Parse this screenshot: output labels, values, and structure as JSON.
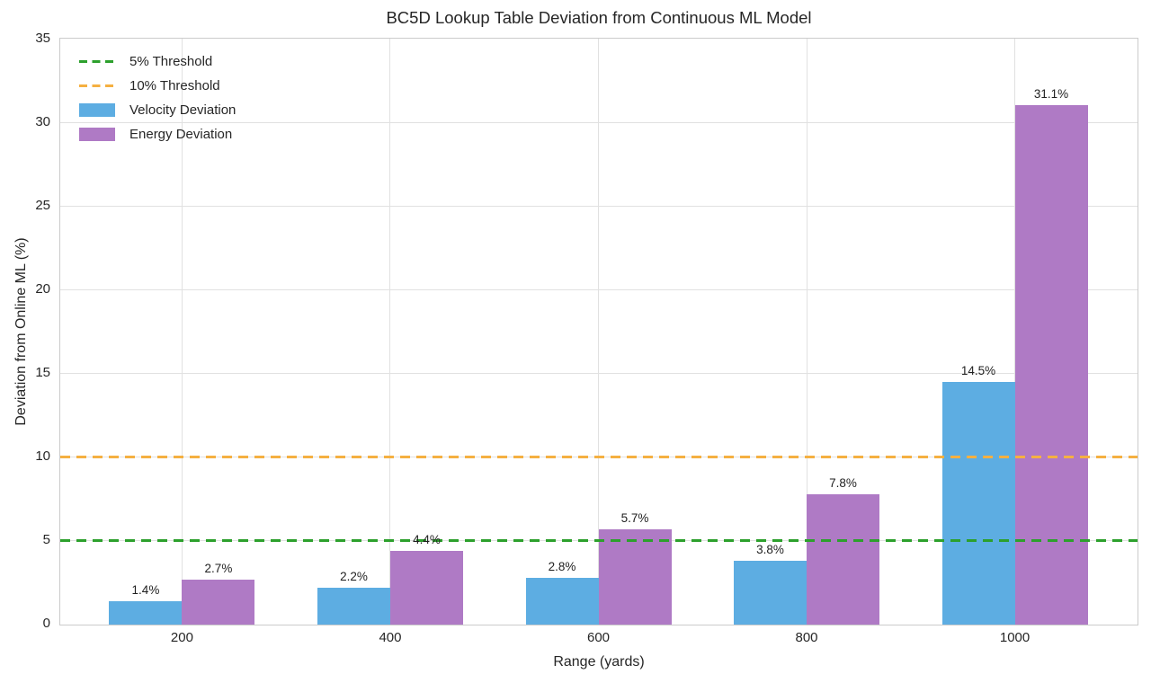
{
  "chart_data": {
    "type": "bar",
    "title": "BC5D Lookup Table Deviation from Continuous ML Model",
    "xlabel": "Range (yards)",
    "ylabel": "Deviation from Online ML (%)",
    "categories": [
      "200",
      "400",
      "600",
      "800",
      "1000"
    ],
    "series": [
      {
        "name": "Velocity Deviation",
        "color": "#5DADE2",
        "values": [
          1.4,
          2.2,
          2.8,
          3.8,
          14.5
        ],
        "labels": [
          "1.4%",
          "2.2%",
          "2.8%",
          "3.8%",
          "14.5%"
        ]
      },
      {
        "name": "Energy Deviation",
        "color": "#AF7AC5",
        "values": [
          2.7,
          4.4,
          5.7,
          7.8,
          31.1
        ],
        "labels": [
          "2.7%",
          "4.4%",
          "5.7%",
          "7.8%",
          "31.1%"
        ]
      }
    ],
    "thresholds": [
      {
        "name": "5% Threshold",
        "value": 5,
        "color": "#2CA02C"
      },
      {
        "name": "10% Threshold",
        "value": 10,
        "color": "#F5B041"
      }
    ],
    "legend_order": [
      "5% Threshold",
      "10% Threshold",
      "Velocity Deviation",
      "Energy Deviation"
    ],
    "legend_position": "upper left",
    "ylim": [
      0,
      35
    ],
    "yticks": [
      0,
      5,
      10,
      15,
      20,
      25,
      30,
      35
    ],
    "grid": true
  }
}
